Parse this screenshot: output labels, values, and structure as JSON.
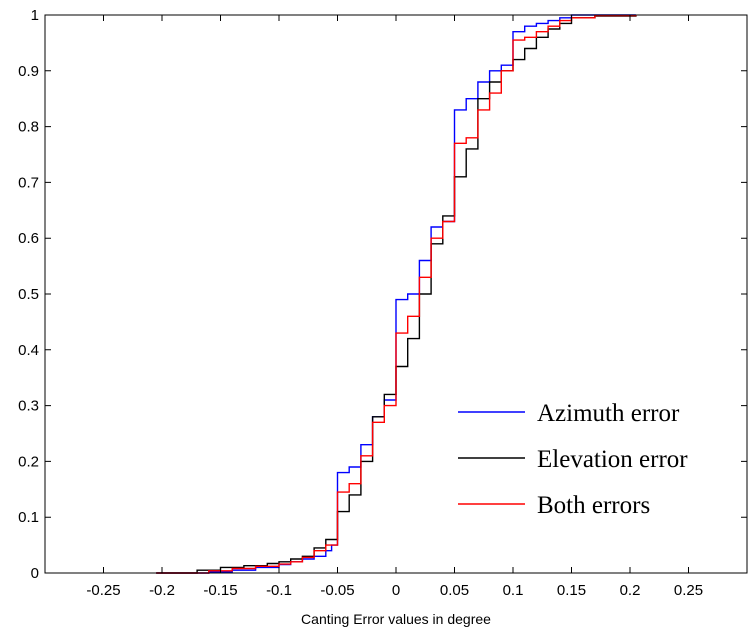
{
  "chart_data": {
    "type": "line",
    "subtype": "empirical-cdf-stairs",
    "xlabel": "Canting Error values in degree",
    "ylabel": "",
    "xlim": [
      -0.3,
      0.3
    ],
    "ylim": [
      0,
      1
    ],
    "xticks": [
      "-0.25",
      "-0.2",
      "-0.15",
      "-0.1",
      "-0.05",
      "0",
      "0.05",
      "0.1",
      "0.15",
      "0.2",
      "0.25"
    ],
    "yticks": [
      "0",
      "0.1",
      "0.2",
      "0.3",
      "0.4",
      "0.5",
      "0.6",
      "0.7",
      "0.8",
      "0.9",
      "1"
    ],
    "grid": false,
    "legend_position": "lower-right",
    "series": [
      {
        "name": "Azimuth error",
        "color": "#0000ff",
        "x": [
          -0.205,
          -0.16,
          -0.14,
          -0.12,
          -0.1,
          -0.09,
          -0.08,
          -0.07,
          -0.06,
          -0.055,
          -0.05,
          -0.04,
          -0.03,
          -0.02,
          -0.01,
          0,
          0.01,
          0.02,
          0.03,
          0.04,
          0.05,
          0.06,
          0.07,
          0.08,
          0.09,
          0.1,
          0.11,
          0.12,
          0.13,
          0.14,
          0.15,
          0.17,
          0.205
        ],
        "y": [
          0,
          0.002,
          0.005,
          0.01,
          0.015,
          0.02,
          0.025,
          0.03,
          0.04,
          0.05,
          0.18,
          0.19,
          0.23,
          0.28,
          0.31,
          0.49,
          0.5,
          0.56,
          0.62,
          0.63,
          0.83,
          0.85,
          0.88,
          0.9,
          0.91,
          0.97,
          0.98,
          0.985,
          0.99,
          0.995,
          1,
          1,
          1
        ]
      },
      {
        "name": "Elevation error",
        "color": "#000000",
        "x": [
          -0.205,
          -0.17,
          -0.15,
          -0.13,
          -0.11,
          -0.1,
          -0.09,
          -0.08,
          -0.07,
          -0.06,
          -0.05,
          -0.04,
          -0.03,
          -0.02,
          -0.01,
          0,
          0.01,
          0.02,
          0.03,
          0.04,
          0.05,
          0.06,
          0.07,
          0.08,
          0.09,
          0.1,
          0.11,
          0.12,
          0.13,
          0.14,
          0.15,
          0.17,
          0.205
        ],
        "y": [
          0,
          0.005,
          0.01,
          0.013,
          0.017,
          0.02,
          0.025,
          0.03,
          0.045,
          0.06,
          0.11,
          0.14,
          0.2,
          0.28,
          0.32,
          0.37,
          0.42,
          0.5,
          0.59,
          0.64,
          0.71,
          0.76,
          0.85,
          0.88,
          0.9,
          0.92,
          0.94,
          0.96,
          0.975,
          0.985,
          0.995,
          0.998,
          1
        ]
      },
      {
        "name": "Both errors",
        "color": "#ff0000",
        "x": [
          -0.205,
          -0.16,
          -0.14,
          -0.12,
          -0.1,
          -0.09,
          -0.08,
          -0.07,
          -0.06,
          -0.05,
          -0.04,
          -0.03,
          -0.02,
          -0.01,
          0,
          0.01,
          0.02,
          0.03,
          0.04,
          0.05,
          0.06,
          0.07,
          0.08,
          0.09,
          0.1,
          0.11,
          0.12,
          0.13,
          0.14,
          0.15,
          0.17,
          0.205
        ],
        "y": [
          0,
          0.004,
          0.008,
          0.012,
          0.016,
          0.02,
          0.028,
          0.04,
          0.05,
          0.145,
          0.16,
          0.21,
          0.27,
          0.3,
          0.43,
          0.46,
          0.53,
          0.6,
          0.63,
          0.77,
          0.78,
          0.83,
          0.86,
          0.9,
          0.955,
          0.96,
          0.97,
          0.98,
          0.99,
          0.995,
          0.999,
          1
        ]
      }
    ]
  }
}
